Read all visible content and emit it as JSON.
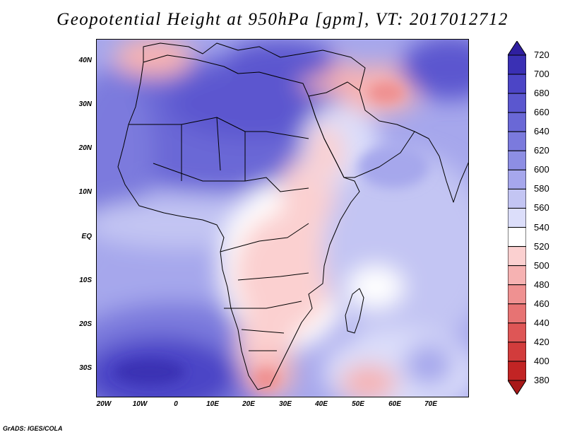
{
  "title": "Geopotential Height at 950hPa [gpm], VT: 2017012712",
  "credit": "GrADS: IGES/COLA",
  "map": {
    "variable": "Geopotential Height",
    "level": "950hPa",
    "units": "gpm",
    "valid_time": "2017012712",
    "lat_labels": [
      "40N",
      "30N",
      "20N",
      "10N",
      "EQ",
      "10S",
      "20S",
      "30S"
    ],
    "lon_labels": [
      "20W",
      "10W",
      "0",
      "10E",
      "20E",
      "30E",
      "40E",
      "50E",
      "60E",
      "70E"
    ]
  },
  "colorbar": {
    "labels": [
      "720",
      "700",
      "680",
      "660",
      "640",
      "620",
      "600",
      "580",
      "560",
      "540",
      "520",
      "500",
      "480",
      "460",
      "440",
      "420",
      "400",
      "380"
    ],
    "colors": [
      "#2f1fa0",
      "#3a30b4",
      "#4c45c6",
      "#5b57cf",
      "#6a68d6",
      "#7b7add",
      "#8d8ee4",
      "#a6a7ec",
      "#c3c5f3",
      "#dcdefa",
      "#ffffff",
      "#fbd0d0",
      "#f6b2b2",
      "#ef9191",
      "#e77373",
      "#de5656",
      "#d23c3c",
      "#c22424",
      "#a81818"
    ]
  }
}
